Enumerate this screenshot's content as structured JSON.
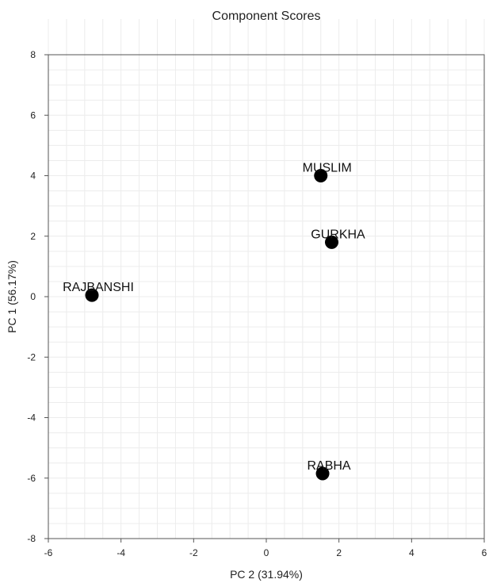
{
  "chart_data": {
    "type": "scatter",
    "title": "Component Scores",
    "xlabel": "PC 2 (31.94%)",
    "ylabel": "PC 1 (56.17%)",
    "xlim": [
      -6,
      6
    ],
    "ylim": [
      -8,
      8
    ],
    "xticks": [
      -6,
      -4,
      -2,
      0,
      2,
      4,
      6
    ],
    "yticks": [
      -8,
      -6,
      -4,
      -2,
      0,
      2,
      4,
      6,
      8
    ],
    "grid": true,
    "points": [
      {
        "label": "MUSLIM",
        "x": 1.5,
        "y": 4.0
      },
      {
        "label": "GURKHA",
        "x": 1.8,
        "y": 1.8
      },
      {
        "label": "RAJBANSHI",
        "x": -4.8,
        "y": 0.05
      },
      {
        "label": "RABHA",
        "x": 1.55,
        "y": -5.85
      }
    ],
    "colors": {
      "marker": "#000000",
      "grid": "#ececec",
      "axis": "#555555"
    }
  }
}
